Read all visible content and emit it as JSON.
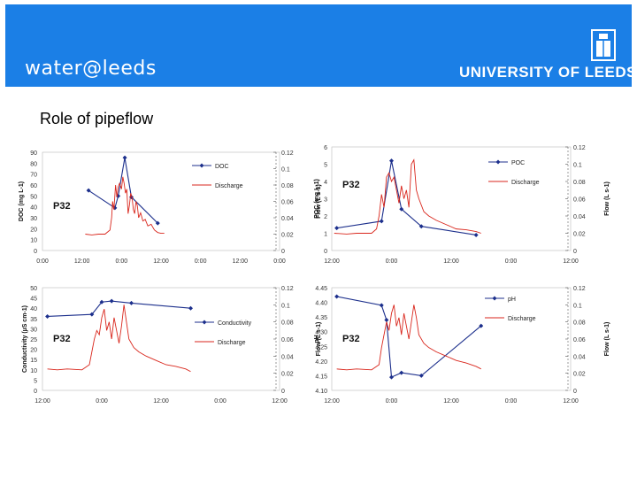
{
  "header": {
    "brand": "water@leeds",
    "university": "UNIVERSITY OF LEEDS",
    "background_color": "#1b7fe6"
  },
  "slide": {
    "title": "Role of pipeflow"
  },
  "colors": {
    "series_blue": "#1c2f8c",
    "discharge_red": "#d9261c"
  },
  "chart_data": [
    {
      "type": "line",
      "site_label": "P32",
      "ylabel": "DOC (mg L-1)",
      "y2label": "Flow (L s-1)",
      "x": {
        "ticks": [
          "0:00",
          "12:00",
          "0:00",
          "12:00",
          "0:00",
          "12:00",
          "0:00"
        ]
      },
      "ylim": [
        0,
        90
      ],
      "yticks": [
        0,
        10,
        20,
        30,
        40,
        50,
        60,
        70,
        80,
        90
      ],
      "y2lim": [
        0,
        0.12
      ],
      "y2ticks": [
        "0",
        "0.02",
        "0.04",
        "0.06",
        "0.08",
        "0.1",
        "0.12"
      ],
      "legend": [
        "DOC",
        "Discharge"
      ],
      "series": [
        {
          "name": "DOC",
          "axis": "left",
          "points": [
            [
              14,
              55
            ],
            [
              22,
              39
            ],
            [
              23,
              50
            ],
            [
              25,
              85
            ],
            [
              27,
              49
            ],
            [
              35,
              25
            ]
          ]
        },
        {
          "name": "Discharge",
          "axis": "right",
          "points": [
            [
              13,
              0.02
            ],
            [
              15,
              0.019
            ],
            [
              17,
              0.02
            ],
            [
              19,
              0.02
            ],
            [
              20.5,
              0.025
            ],
            [
              21,
              0.04
            ],
            [
              21.3,
              0.06
            ],
            [
              21.7,
              0.05
            ],
            [
              22.2,
              0.08
            ],
            [
              22.6,
              0.065
            ],
            [
              23,
              0.078
            ],
            [
              23.4,
              0.082
            ],
            [
              24,
              0.075
            ],
            [
              24.4,
              0.09
            ],
            [
              24.8,
              0.082
            ],
            [
              25.2,
              0.07
            ],
            [
              25.6,
              0.075
            ],
            [
              26,
              0.045
            ],
            [
              26.4,
              0.055
            ],
            [
              26.8,
              0.07
            ],
            [
              27.2,
              0.065
            ],
            [
              27.6,
              0.05
            ],
            [
              28,
              0.045
            ],
            [
              28.4,
              0.06
            ],
            [
              28.8,
              0.055
            ],
            [
              29.2,
              0.04
            ],
            [
              29.8,
              0.046
            ],
            [
              30.5,
              0.036
            ],
            [
              31.2,
              0.038
            ],
            [
              32,
              0.03
            ],
            [
              33,
              0.032
            ],
            [
              34,
              0.025
            ],
            [
              35,
              0.022
            ],
            [
              36,
              0.021
            ],
            [
              37,
              0.021
            ]
          ]
        }
      ]
    },
    {
      "type": "line",
      "site_label": "P32",
      "ylabel": "POC (mg L-1)",
      "y2label": "Flow (L s-1)",
      "x": {
        "ticks": [
          "12:00",
          "0:00",
          "12:00",
          "0:00",
          "12:00"
        ]
      },
      "ylim": [
        0,
        6
      ],
      "yticks": [
        0,
        1,
        2,
        3,
        4,
        5,
        6
      ],
      "y2lim": [
        0,
        0.12
      ],
      "y2ticks": [
        "0",
        "0.02",
        "0.04",
        "0.06",
        "0.08",
        "0.1",
        "0.12"
      ],
      "legend": [
        "POC",
        "Discharge"
      ],
      "series": [
        {
          "name": "POC",
          "axis": "left",
          "points": [
            [
              13,
              1.3
            ],
            [
              22,
              1.7
            ],
            [
              24,
              5.2
            ],
            [
              26,
              2.4
            ],
            [
              30,
              1.4
            ],
            [
              41,
              0.9
            ]
          ]
        },
        {
          "name": "Discharge",
          "axis": "right",
          "points": [
            [
              12.5,
              0.02
            ],
            [
              15,
              0.019
            ],
            [
              17,
              0.02
            ],
            [
              20,
              0.02
            ],
            [
              21,
              0.025
            ],
            [
              21.5,
              0.04
            ],
            [
              22,
              0.065
            ],
            [
              22.5,
              0.05
            ],
            [
              23,
              0.085
            ],
            [
              23.5,
              0.09
            ],
            [
              24,
              0.08
            ],
            [
              24.5,
              0.085
            ],
            [
              25,
              0.07
            ],
            [
              25.5,
              0.055
            ],
            [
              26,
              0.075
            ],
            [
              26.5,
              0.06
            ],
            [
              27,
              0.07
            ],
            [
              27.5,
              0.05
            ],
            [
              28,
              0.1
            ],
            [
              28.5,
              0.105
            ],
            [
              29,
              0.07
            ],
            [
              29.5,
              0.06
            ],
            [
              30.5,
              0.045
            ],
            [
              31.5,
              0.04
            ],
            [
              33,
              0.035
            ],
            [
              35,
              0.03
            ],
            [
              37,
              0.025
            ],
            [
              39,
              0.024
            ],
            [
              41,
              0.022
            ],
            [
              42,
              0.02
            ]
          ]
        }
      ]
    },
    {
      "type": "line",
      "site_label": "P32",
      "ylabel": "Conductivity (µS cm-1)",
      "y2label": "Flow (L s-1)",
      "x": {
        "ticks": [
          "12:00",
          "0:00",
          "12:00",
          "0:00",
          "12:00"
        ]
      },
      "ylim": [
        0,
        50
      ],
      "yticks": [
        0,
        5,
        10,
        15,
        20,
        25,
        30,
        35,
        40,
        45,
        50
      ],
      "y2lim": [
        0,
        0.12
      ],
      "y2ticks": [
        "0",
        "0.02",
        "0.04",
        "0.06",
        "0.08",
        "0.1",
        "0.12"
      ],
      "legend": [
        "Conductivity",
        "Discharge"
      ],
      "series": [
        {
          "name": "Conductivity",
          "axis": "left",
          "points": [
            [
              13,
              36
            ],
            [
              22,
              37
            ],
            [
              24,
              43
            ],
            [
              26,
              43.5
            ],
            [
              30,
              42.5
            ],
            [
              42,
              40
            ]
          ]
        },
        {
          "name": "Discharge",
          "axis": "right",
          "points": [
            [
              13,
              0.025
            ],
            [
              15,
              0.024
            ],
            [
              17,
              0.025
            ],
            [
              20,
              0.024
            ],
            [
              21.5,
              0.03
            ],
            [
              22,
              0.045
            ],
            [
              22.5,
              0.06
            ],
            [
              23,
              0.07
            ],
            [
              23.5,
              0.065
            ],
            [
              24,
              0.085
            ],
            [
              24.5,
              0.095
            ],
            [
              25,
              0.07
            ],
            [
              25.5,
              0.08
            ],
            [
              26,
              0.06
            ],
            [
              26.5,
              0.085
            ],
            [
              27,
              0.07
            ],
            [
              27.5,
              0.055
            ],
            [
              28,
              0.075
            ],
            [
              28.5,
              0.1
            ],
            [
              29,
              0.08
            ],
            [
              29.5,
              0.06
            ],
            [
              30.5,
              0.05
            ],
            [
              31.5,
              0.045
            ],
            [
              33,
              0.04
            ],
            [
              35,
              0.035
            ],
            [
              37,
              0.03
            ],
            [
              39,
              0.028
            ],
            [
              41,
              0.025
            ],
            [
              42,
              0.022
            ]
          ]
        }
      ]
    },
    {
      "type": "line",
      "site_label": "P32",
      "ylabel": "pH",
      "y2label": "Flow (L s-1)",
      "x": {
        "ticks": [
          "12:00",
          "0:00",
          "12:00",
          "0:00",
          "12:00"
        ]
      },
      "ylim": [
        4.1,
        4.45
      ],
      "yticks": [
        "4.10",
        "4.15",
        "4.20",
        "4.25",
        "4.30",
        "4.35",
        "4.40",
        "4.45"
      ],
      "y2lim": [
        0,
        0.12
      ],
      "y2ticks": [
        "0",
        "0.02",
        "0.04",
        "0.06",
        "0.08",
        "0.1",
        "0.12"
      ],
      "legend": [
        "pH",
        "Discharge"
      ],
      "series": [
        {
          "name": "pH",
          "axis": "left",
          "points": [
            [
              13,
              4.42
            ],
            [
              22,
              4.39
            ],
            [
              23,
              4.34
            ],
            [
              24,
              4.145
            ],
            [
              26,
              4.16
            ],
            [
              30,
              4.15
            ],
            [
              42,
              4.32
            ]
          ]
        },
        {
          "name": "Discharge",
          "axis": "right",
          "points": [
            [
              13,
              0.025
            ],
            [
              15,
              0.024
            ],
            [
              17,
              0.025
            ],
            [
              20,
              0.024
            ],
            [
              21.5,
              0.03
            ],
            [
              22,
              0.05
            ],
            [
              22.5,
              0.065
            ],
            [
              23,
              0.08
            ],
            [
              23.5,
              0.07
            ],
            [
              24,
              0.09
            ],
            [
              24.5,
              0.1
            ],
            [
              25,
              0.075
            ],
            [
              25.5,
              0.085
            ],
            [
              26,
              0.065
            ],
            [
              26.5,
              0.09
            ],
            [
              27,
              0.075
            ],
            [
              27.5,
              0.06
            ],
            [
              28,
              0.08
            ],
            [
              28.5,
              0.1
            ],
            [
              29,
              0.085
            ],
            [
              29.5,
              0.065
            ],
            [
              30.5,
              0.055
            ],
            [
              31.5,
              0.05
            ],
            [
              33,
              0.045
            ],
            [
              35,
              0.04
            ],
            [
              37,
              0.035
            ],
            [
              39,
              0.032
            ],
            [
              41,
              0.028
            ],
            [
              42,
              0.025
            ]
          ]
        }
      ]
    }
  ]
}
